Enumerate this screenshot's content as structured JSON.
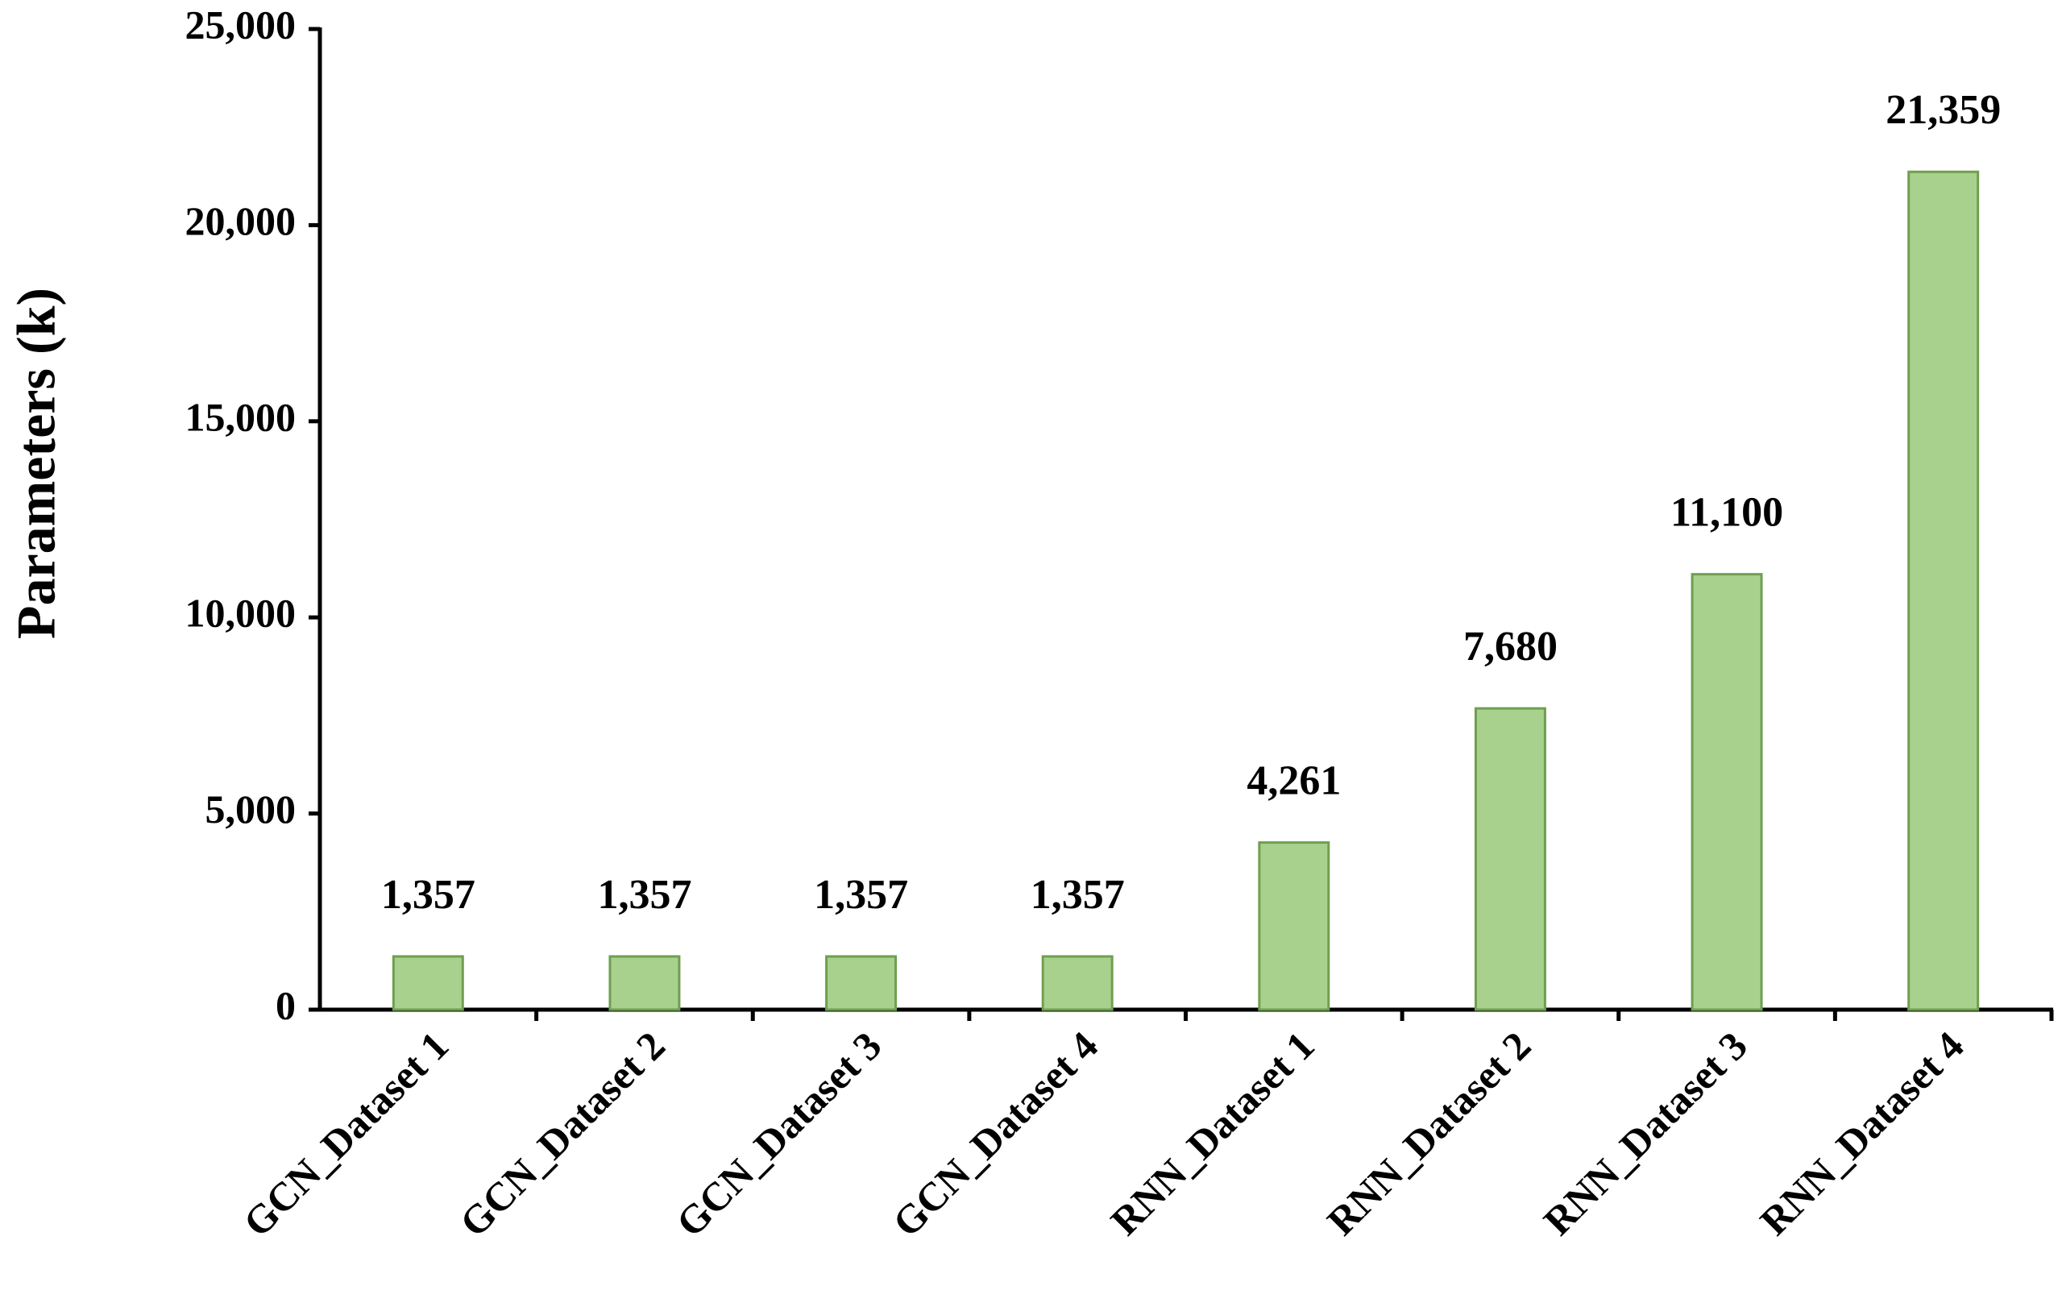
{
  "chart_data": {
    "type": "bar",
    "y_label": "Parameters (k)",
    "categories": [
      "GCN_Dataset 1",
      "GCN_Dataset 2",
      "GCN_Dataset 3",
      "GCN_Dataset 4",
      "RNN_Dataset 1",
      "RNN_Dataset 2",
      "RNN_Dataset 3",
      "RNN_Dataset 4"
    ],
    "values": [
      1357,
      1357,
      1357,
      1357,
      4261,
      7680,
      11100,
      21359
    ],
    "value_labels": [
      "1,357",
      "1,357",
      "1,357",
      "1,357",
      "4,261",
      "7,680",
      "11,100",
      "21,359"
    ],
    "color": "#a9d18e",
    "ylim": [
      0,
      25000
    ],
    "yticks": [
      0,
      {
        "value": 5000,
        "label": "5,000"
      },
      {
        "value": 10000,
        "label": "10,000"
      },
      {
        "value": 15000,
        "label": "15,000"
      },
      {
        "value": 20000,
        "label": "20,000"
      },
      {
        "value": 25000,
        "label": "25,000"
      }
    ],
    "grid": false
  }
}
